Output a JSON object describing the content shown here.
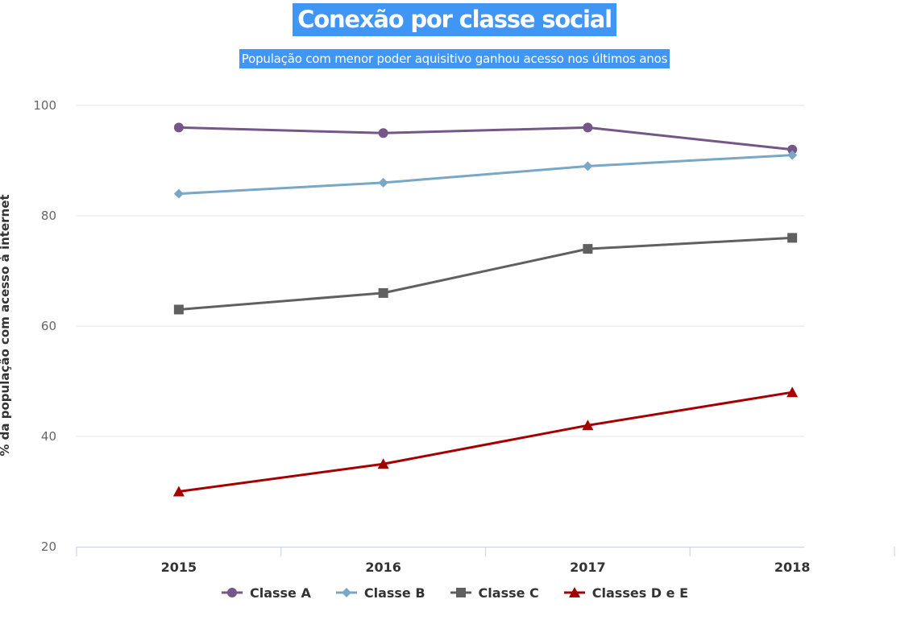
{
  "title": "Conexão por classe social",
  "subtitle": "População com menor poder aquisitivo ganhou acesso nos últimos anos",
  "chart_data": {
    "type": "line",
    "categories": [
      "2015",
      "2016",
      "2017",
      "2018"
    ],
    "ylabel": "% da população com acesso à internet",
    "xlabel": "",
    "ylim": [
      20,
      100
    ],
    "yticks": [
      20,
      40,
      60,
      80,
      100
    ],
    "grid": true,
    "legend": "bottom",
    "series": [
      {
        "name": "Classe A",
        "values": [
          96,
          95,
          96,
          92
        ],
        "color": "#745689",
        "marker": "circle"
      },
      {
        "name": "Classe B",
        "values": [
          84,
          86,
          89,
          91
        ],
        "color": "#79a7c5",
        "marker": "diamond"
      },
      {
        "name": "Classe C",
        "values": [
          63,
          66,
          74,
          76
        ],
        "color": "#606060",
        "marker": "square"
      },
      {
        "name": "Classes D e E",
        "values": [
          30,
          35,
          42,
          48
        ],
        "color": "#a50000",
        "marker": "triangle"
      }
    ]
  }
}
